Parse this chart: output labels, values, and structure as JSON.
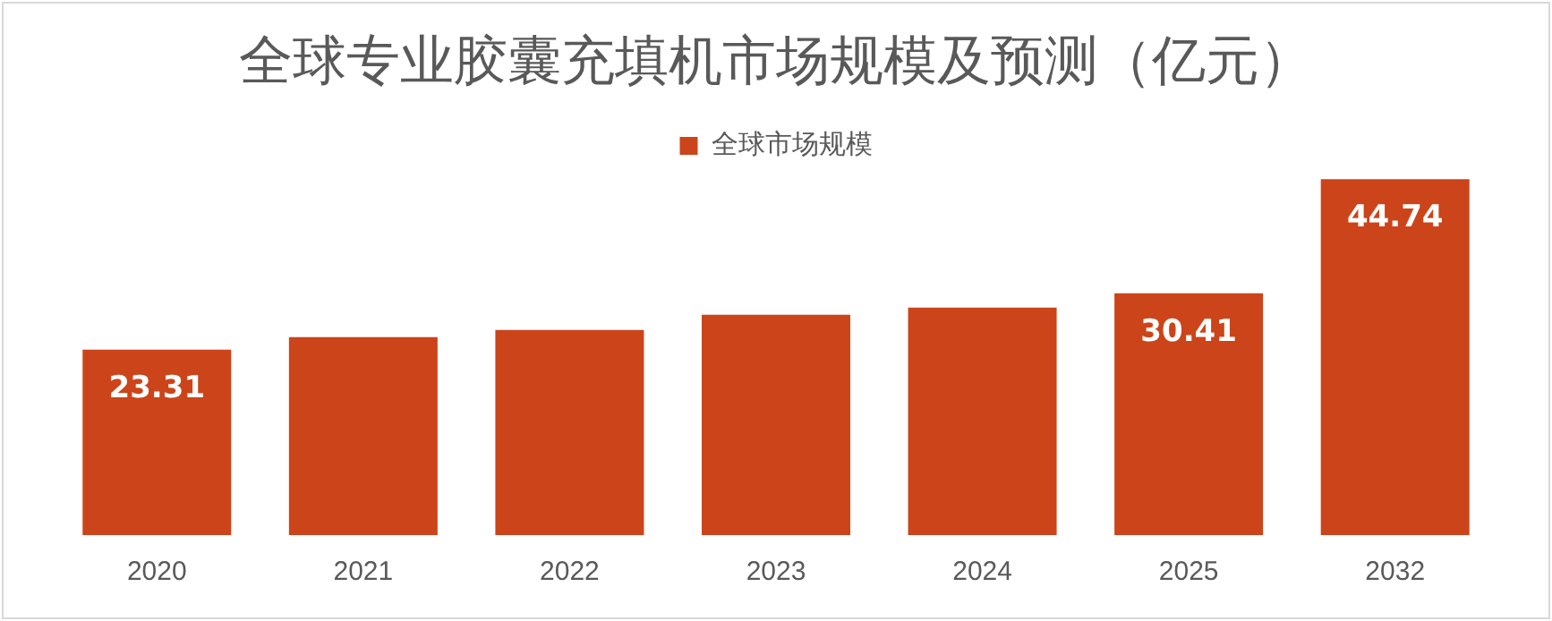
{
  "chart_data": {
    "type": "bar",
    "title": "全球专业胶囊充填机市场规模及预测（亿元）",
    "categories": [
      "2020",
      "2021",
      "2022",
      "2023",
      "2024",
      "2025",
      "2032"
    ],
    "series": [
      {
        "name": "全球市场规模",
        "color": "#cc4419",
        "values": [
          23.31,
          24.9,
          25.8,
          27.7,
          28.6,
          30.41,
          44.74
        ],
        "value_labels": [
          "23.31",
          null,
          null,
          null,
          null,
          "30.41",
          "44.74"
        ]
      }
    ],
    "legend": "top",
    "grid": false,
    "tick_labels": "x"
  }
}
